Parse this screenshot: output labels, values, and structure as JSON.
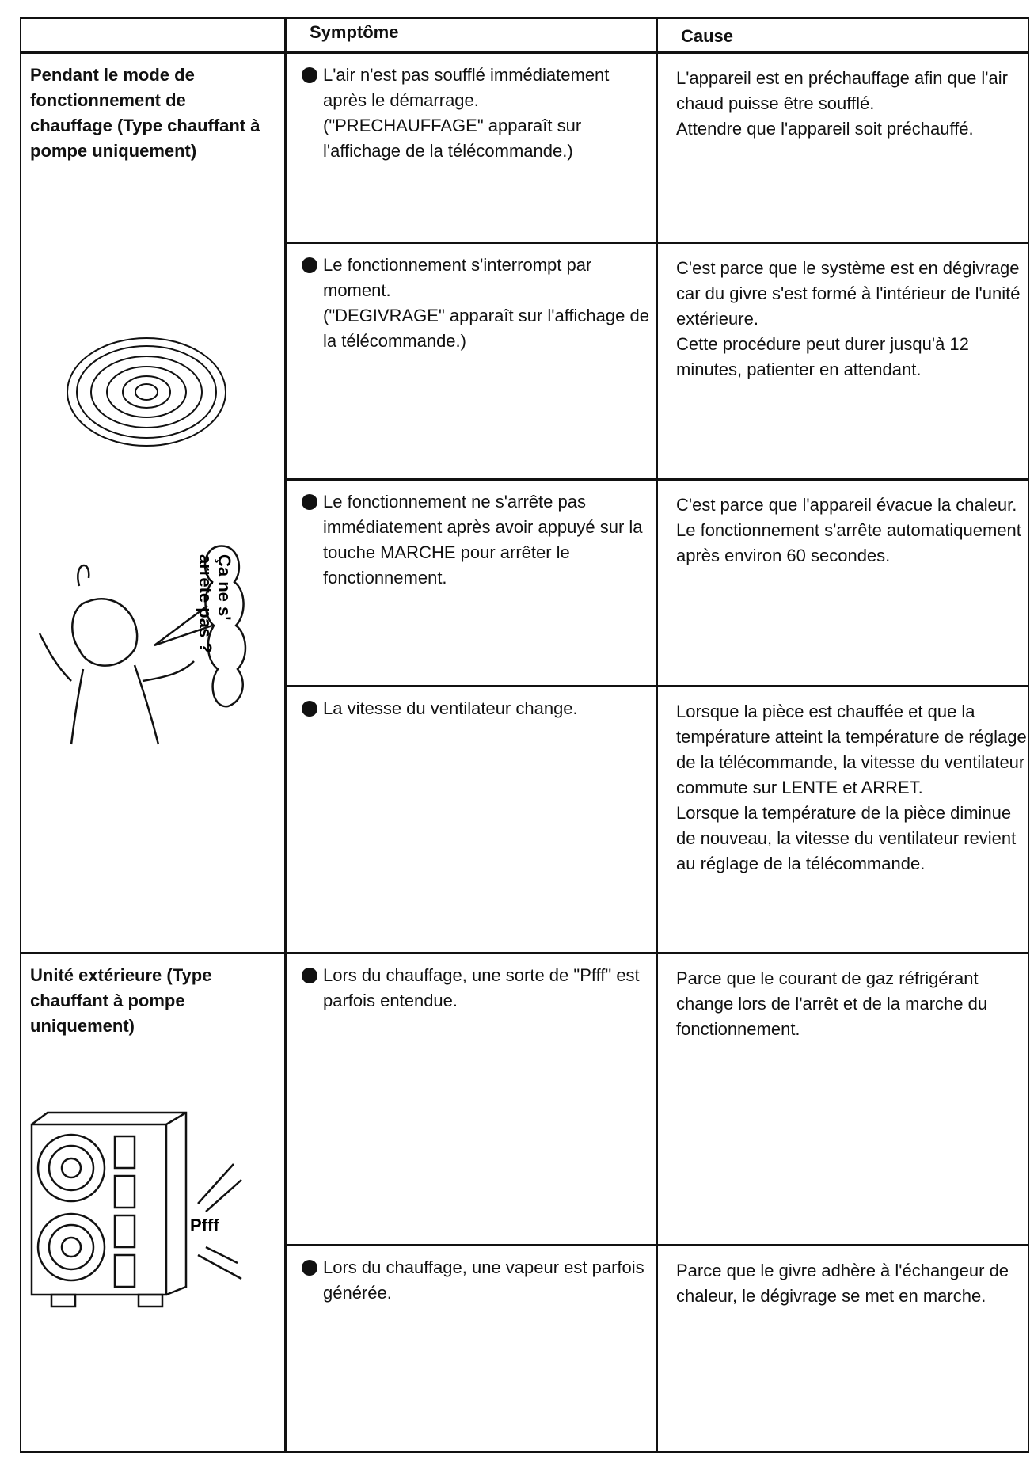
{
  "header": {
    "symptom": "Symptôme",
    "cause": "Cause"
  },
  "groups": [
    {
      "label": "Pendant le mode de fonctionnement de chauffage (Type chauffant à pompe uniquement)",
      "speech": [
        "Ça ne s'",
        "arrête pas ?"
      ],
      "rows": [
        {
          "symptom": [
            "L'air n'est pas soufflé immédiatement après le démarrage.",
            "(\"PRECHAUFFAGE\" apparaît sur l'affichage de la télécommande.)"
          ],
          "cause": [
            "L'appareil est en préchauffage afin que l'air chaud puisse être soufflé.",
            "Attendre que l'appareil soit préchauffé."
          ]
        },
        {
          "symptom": [
            "Le fonctionnement s'interrompt par moment.",
            "(\"DEGIVRAGE\" apparaît sur l'affichage de la télécommande.)"
          ],
          "cause": [
            "C'est parce que le système est en dégivrage car du givre s'est formé à l'intérieur de l'unité extérieure.",
            "Cette procédure peut durer jusqu'à 12 minutes, patienter en attendant."
          ]
        },
        {
          "symptom": [
            "Le fonctionnement ne s'arrête pas immédiatement après avoir appuyé sur la touche MARCHE pour arrêter le fonctionnement."
          ],
          "cause": [
            "C'est parce que l'appareil évacue la chaleur.",
            "Le fonctionnement s'arrête automatiquement après environ 60 secondes."
          ]
        },
        {
          "symptom": [
            "La vitesse du ventilateur change."
          ],
          "cause": [
            "Lorsque la pièce est chauffée et que la température atteint la température de réglage de la télécommande, la vitesse du ventilateur commute sur LENTE et ARRET.",
            "Lorsque la température de la pièce diminue de nouveau, la vitesse du ventilateur revient au réglage de la télécommande."
          ]
        }
      ]
    },
    {
      "label": "Unité extérieure (Type chauffant à pompe uniquement)",
      "sound": "Pfff",
      "rows": [
        {
          "symptom": [
            "Lors du chauffage, une sorte de \"Pfff\" est parfois entendue."
          ],
          "cause": [
            "Parce que le courant de gaz réfrigérant change lors de l'arrêt et de la marche du fonctionnement."
          ]
        },
        {
          "symptom": [
            "Lors du chauffage, une vapeur est parfois générée."
          ],
          "cause": [
            "Parce que le givre adhère à l'échangeur de chaleur, le dégivrage se met en marche."
          ]
        }
      ]
    }
  ]
}
